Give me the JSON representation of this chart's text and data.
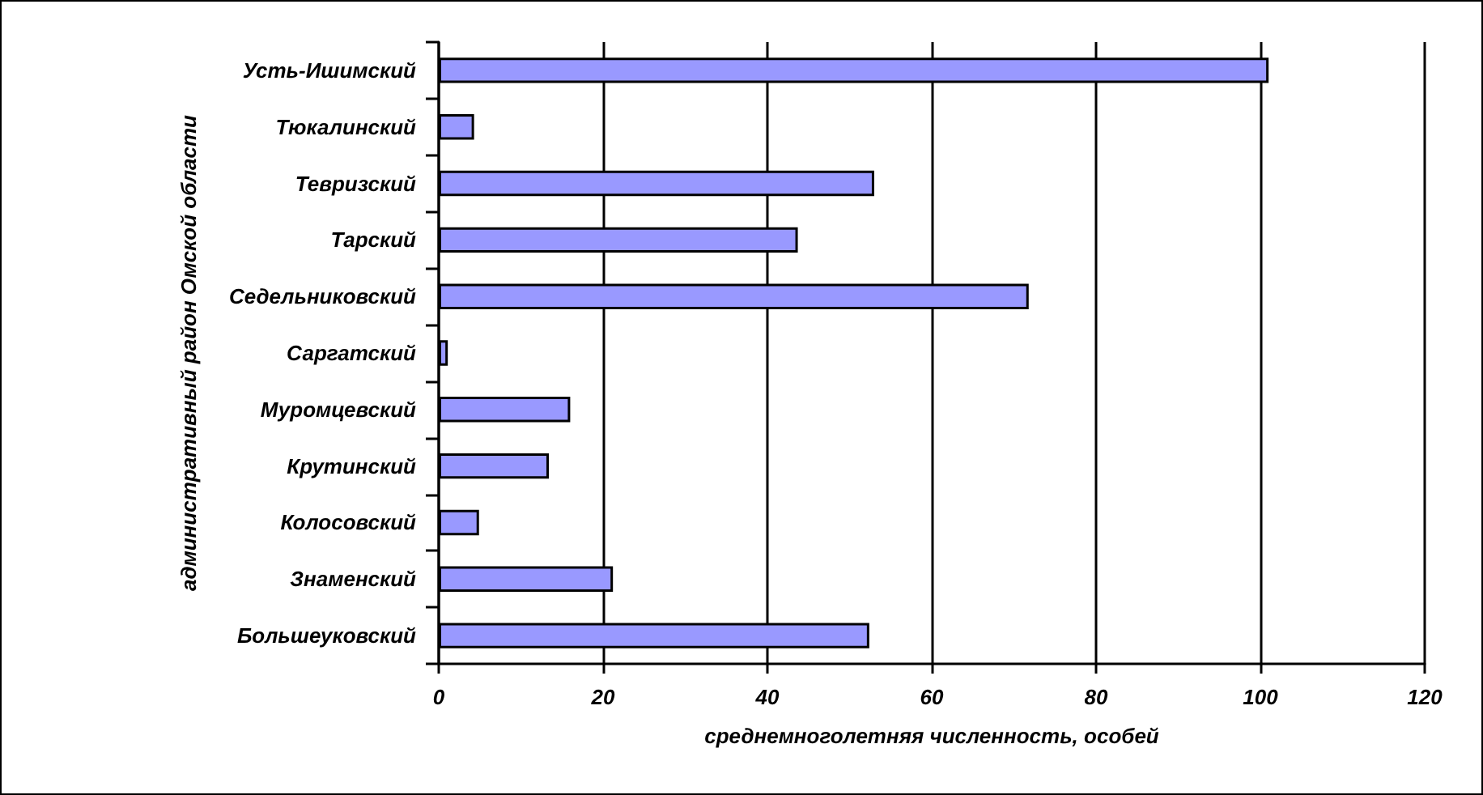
{
  "chart_data": {
    "type": "bar",
    "orientation": "horizontal",
    "categories": [
      "Усть-Ишимский",
      "Тюкалинский",
      "Тевризский",
      "Тарский",
      "Седельниковский",
      "Саргатский",
      "Муромцевский",
      "Крутинский",
      "Колосовский",
      "Знаменский",
      "Большеуковский"
    ],
    "values": [
      101,
      4.3,
      53,
      43.7,
      71.8,
      1.1,
      16,
      13.4,
      4.9,
      21.2,
      52.4
    ],
    "color": "#9999ff",
    "xlabel": "среднемноголетняя численность, особей",
    "ylabel": "административный район Омской области",
    "xlim": [
      0,
      120
    ],
    "xticks": [
      0,
      20,
      40,
      60,
      80,
      100,
      120
    ],
    "grid": "x"
  }
}
